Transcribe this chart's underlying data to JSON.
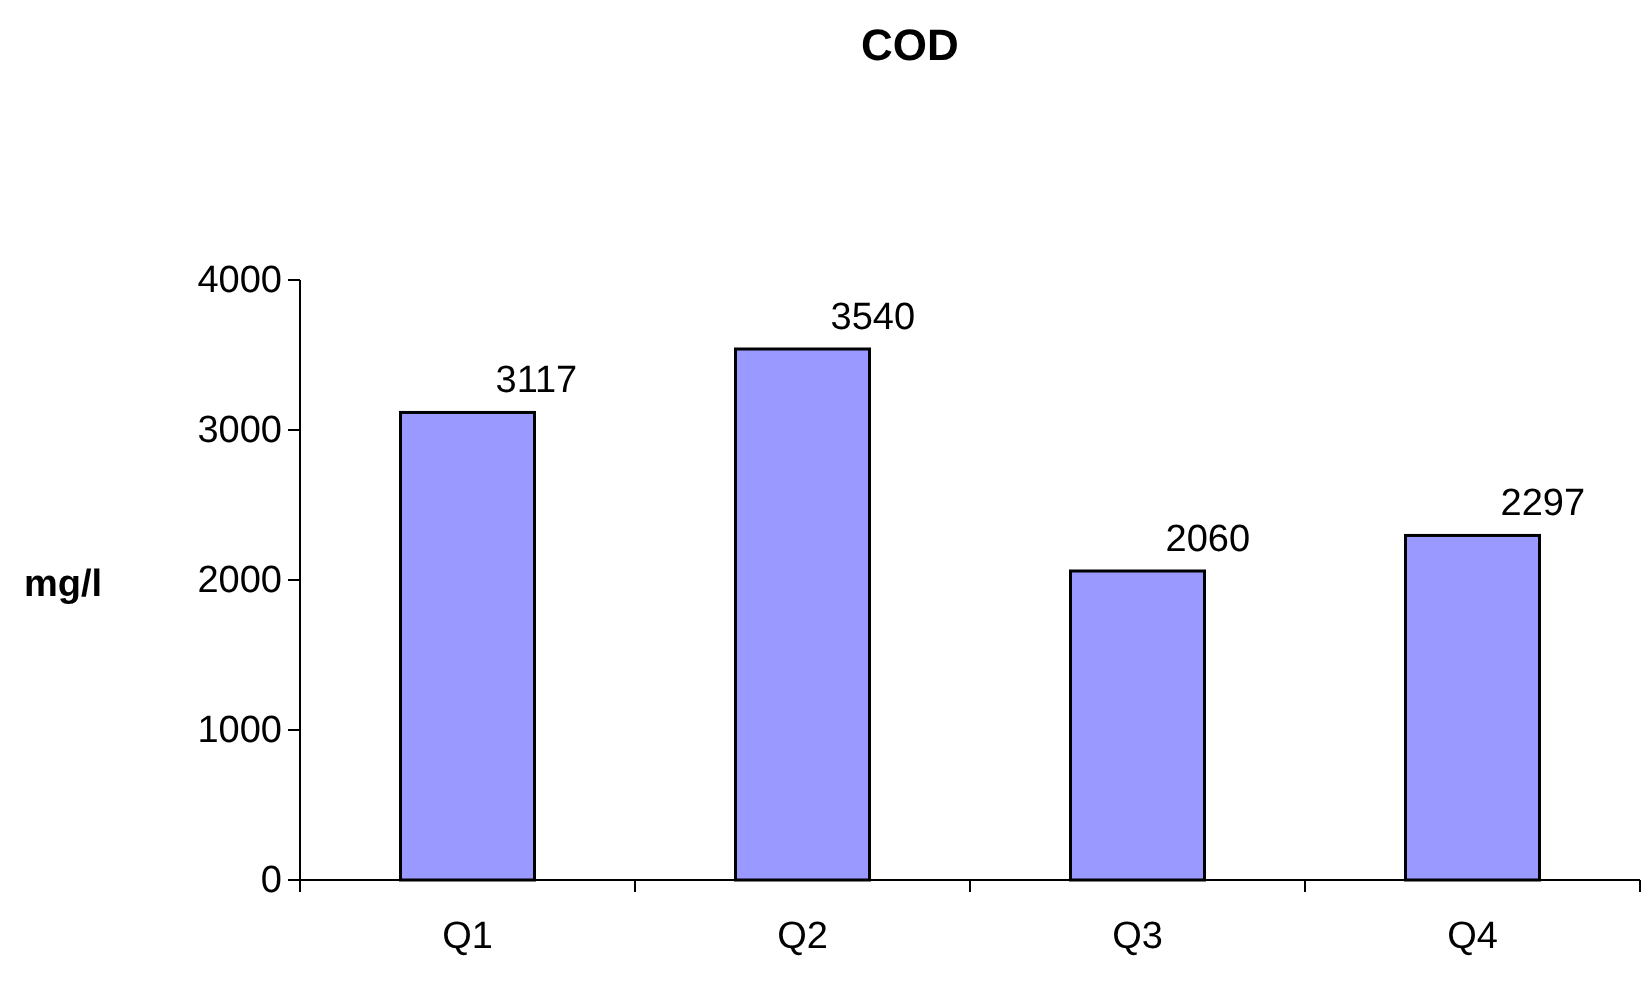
{
  "chart_data": {
    "type": "bar",
    "title": "COD",
    "ylabel": "mg/l",
    "categories": [
      "Q1",
      "Q2",
      "Q3",
      "Q4"
    ],
    "values": [
      3117,
      3540,
      2060,
      2297
    ],
    "color": "#9999ff",
    "ylim": [
      0,
      4000
    ],
    "yticks": [
      0,
      1000,
      2000,
      3000,
      4000
    ],
    "data_labels": true
  }
}
